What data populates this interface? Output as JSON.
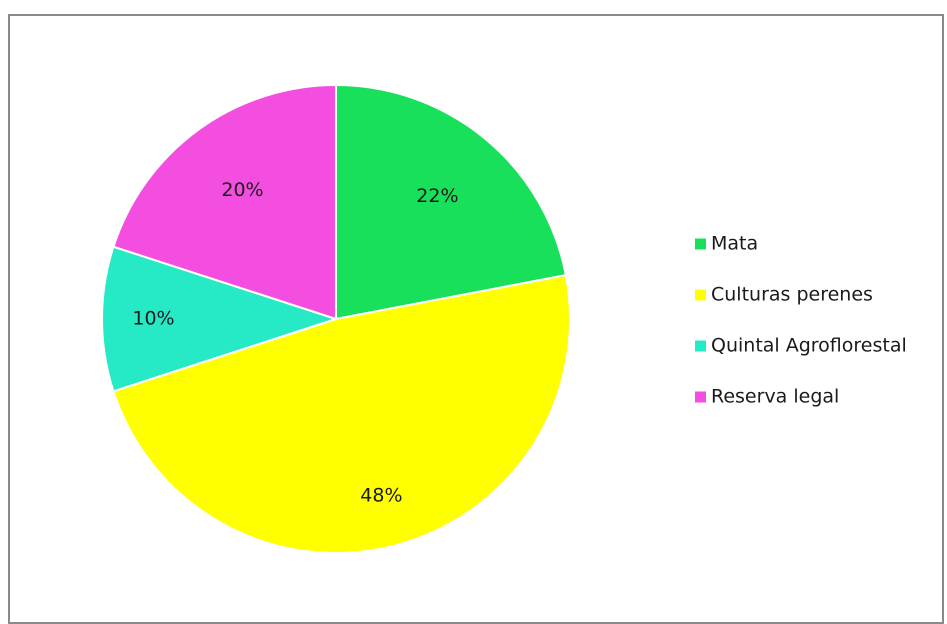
{
  "chart_data": {
    "type": "pie",
    "categories": [
      "Mata",
      "Culturas perenes",
      "Quintal Agroflorestal",
      "Reserva legal"
    ],
    "values": [
      22,
      48,
      10,
      20
    ],
    "labels": [
      "22%",
      "48%",
      "10%",
      "20%"
    ],
    "colors": [
      "#19e05a",
      "#ffff00",
      "#26e9c6",
      "#f44ee1"
    ],
    "legend_position": "right"
  }
}
